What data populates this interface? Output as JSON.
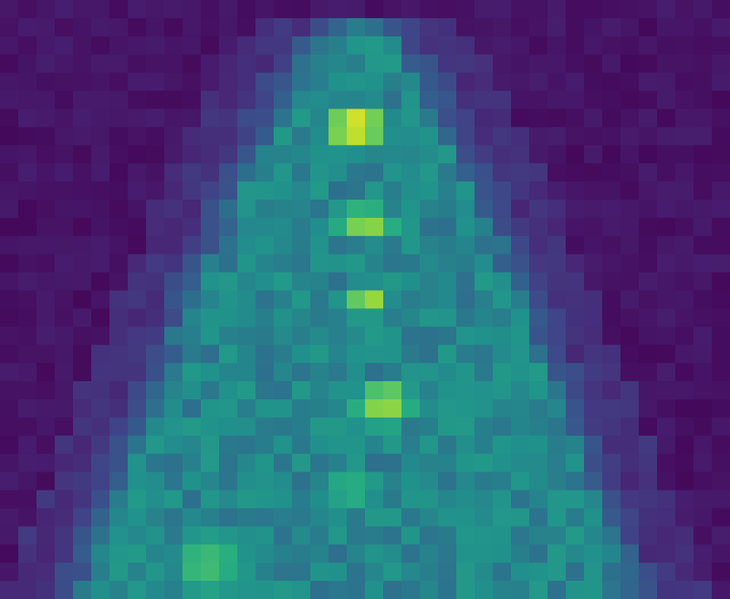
{
  "chart_data": {
    "type": "heatmap",
    "colormap": "viridis",
    "value_range": [
      0,
      1
    ],
    "rows": 33,
    "cols": 40,
    "grid": false,
    "title": "",
    "xlabel": "",
    "ylabel": "",
    "silhouette": {
      "top_row": 1,
      "half_width_start": 3,
      "half_width_end": 17,
      "center_col": 19,
      "base_value": 0.48,
      "edge_falloff": 2.2
    },
    "hotspots": [
      {
        "row": 6.5,
        "col": 19.0,
        "radius_rows": 1.7,
        "radius_cols": 2.3,
        "value": 0.99
      },
      {
        "row": 11.8,
        "col": 19.5,
        "radius_rows": 1.5,
        "radius_cols": 2.6,
        "value": 0.86
      },
      {
        "row": 15.9,
        "col": 19.6,
        "radius_rows": 1.2,
        "radius_cols": 1.4,
        "value": 0.9
      },
      {
        "row": 21.8,
        "col": 20.5,
        "radius_rows": 1.9,
        "radius_cols": 2.4,
        "value": 0.88
      },
      {
        "row": 26.5,
        "col": 18.5,
        "radius_rows": 1.8,
        "radius_cols": 3.0,
        "value": 0.66
      },
      {
        "row": 30.5,
        "col": 11.0,
        "radius_rows": 3.0,
        "radius_cols": 3.5,
        "value": 0.7
      }
    ]
  }
}
